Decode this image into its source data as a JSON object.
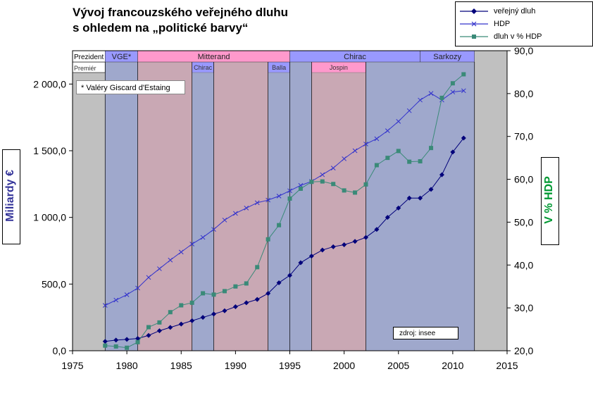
{
  "title_line1": "Vývoj francouzského veřejného dluhu",
  "title_line2": "s ohledem na „politické barvy“",
  "note": "* Valéry Giscard d'Estaing",
  "source": "zdroj: insee",
  "colors": {
    "debt": "#00007a",
    "gdp": "#3333cc",
    "ratio": "#3a8a78",
    "left_bg": "#c9a8b4",
    "right_bg": "#9fa8cc",
    "outside_bg": "#c0c0c0",
    "band_left": "#ff99cc",
    "band_right": "#9999ff",
    "left_title": "#333399",
    "right_title": "#009933"
  },
  "chart_data": {
    "type": "line",
    "title": "Vývoj francouzského veřejného dluhu s ohledem na „politické barvy“",
    "xlim": [
      1975,
      2015
    ],
    "x_ticks": [
      "1975",
      "1980",
      "1985",
      "1990",
      "1995",
      "2000",
      "2005",
      "2010",
      "2015"
    ],
    "y_left": {
      "label": "Miliardy €",
      "range": [
        0,
        2250
      ],
      "ticks": [
        "0,0",
        "500,0",
        "1 000,0",
        "1 500,0",
        "2 000,0"
      ]
    },
    "y_right": {
      "label": "V % HDP",
      "range": [
        20,
        90
      ],
      "ticks": [
        "20,0",
        "30,0",
        "40,0",
        "50,0",
        "60,0",
        "70,0",
        "80,0",
        "90,0"
      ]
    },
    "series": [
      {
        "name": "veřejný dluh",
        "axis": "left",
        "marker": "diamond",
        "x": [
          1978,
          1979,
          1980,
          1981,
          1982,
          1983,
          1984,
          1985,
          1986,
          1987,
          1988,
          1989,
          1990,
          1991,
          1992,
          1993,
          1994,
          1995,
          1996,
          1997,
          1998,
          1999,
          2000,
          2001,
          2002,
          2003,
          2004,
          2005,
          2006,
          2007,
          2008,
          2009,
          2010,
          2011
        ],
        "values": [
          70,
          80,
          85,
          92,
          115,
          150,
          175,
          200,
          225,
          250,
          275,
          300,
          330,
          360,
          385,
          430,
          510,
          565,
          660,
          710,
          755,
          780,
          795,
          820,
          850,
          910,
          1000,
          1070,
          1145,
          1145,
          1210,
          1320,
          1490,
          1595
        ]
      },
      {
        "name": "HDP",
        "axis": "left",
        "marker": "x",
        "x": [
          1978,
          1979,
          1980,
          1981,
          1982,
          1983,
          1984,
          1985,
          1986,
          1987,
          1988,
          1989,
          1990,
          1991,
          1992,
          1993,
          1994,
          1995,
          1996,
          1997,
          1998,
          1999,
          2000,
          2001,
          2002,
          2003,
          2004,
          2005,
          2006,
          2007,
          2008,
          2009,
          2010,
          2011
        ],
        "values": [
          340,
          380,
          420,
          470,
          550,
          615,
          680,
          740,
          800,
          850,
          910,
          980,
          1030,
          1070,
          1110,
          1130,
          1160,
          1200,
          1240,
          1270,
          1320,
          1370,
          1440,
          1500,
          1550,
          1590,
          1650,
          1720,
          1800,
          1880,
          1930,
          1880,
          1940,
          1950
        ]
      },
      {
        "name": "dluh v % HDP",
        "axis": "right",
        "marker": "square",
        "x": [
          1978,
          1979,
          1980,
          1981,
          1982,
          1983,
          1984,
          1985,
          1986,
          1987,
          1988,
          1989,
          1990,
          1991,
          1992,
          1993,
          1994,
          1995,
          1996,
          1997,
          1998,
          1999,
          2000,
          2001,
          2002,
          2003,
          2004,
          2005,
          2006,
          2007,
          2008,
          2009,
          2010,
          2011
        ],
        "values": [
          21.2,
          21.0,
          20.7,
          22.0,
          25.5,
          26.6,
          29.0,
          30.6,
          31.2,
          33.4,
          33.1,
          33.9,
          35.0,
          35.7,
          39.5,
          46.0,
          49.3,
          55.5,
          57.8,
          59.4,
          59.5,
          58.9,
          57.4,
          56.9,
          58.8,
          63.3,
          65.0,
          66.6,
          64.1,
          64.2,
          67.3,
          79.0,
          82.4,
          84.5
        ]
      }
    ],
    "presidents": [
      {
        "label": "Prezident",
        "from": 1975,
        "to": 1978,
        "orient": "header"
      },
      {
        "label": "VGE*",
        "from": 1978,
        "to": 1981,
        "orient": "right"
      },
      {
        "label": "Mitterand",
        "from": 1981,
        "to": 1995,
        "orient": "left"
      },
      {
        "label": "Chirac",
        "from": 1995,
        "to": 2007,
        "orient": "right"
      },
      {
        "label": "Sarkozy",
        "from": 2007,
        "to": 2012,
        "orient": "right"
      }
    ],
    "premiers": [
      {
        "label": "Premiér",
        "from": 1975,
        "to": 1978,
        "orient": "header"
      },
      {
        "label": "",
        "from": 1978,
        "to": 1981,
        "orient": "right"
      },
      {
        "label": "",
        "from": 1981,
        "to": 1986,
        "orient": "left"
      },
      {
        "label": "Chirac",
        "from": 1986,
        "to": 1988,
        "orient": "right"
      },
      {
        "label": "",
        "from": 1988,
        "to": 1993,
        "orient": "left"
      },
      {
        "label": "Balla",
        "from": 1993,
        "to": 1995,
        "orient": "right"
      },
      {
        "label": "",
        "from": 1995,
        "to": 1997,
        "orient": "right"
      },
      {
        "label": "Jospin",
        "from": 1997,
        "to": 2002,
        "orient": "left"
      },
      {
        "label": "",
        "from": 2002,
        "to": 2012,
        "orient": "right"
      }
    ]
  }
}
